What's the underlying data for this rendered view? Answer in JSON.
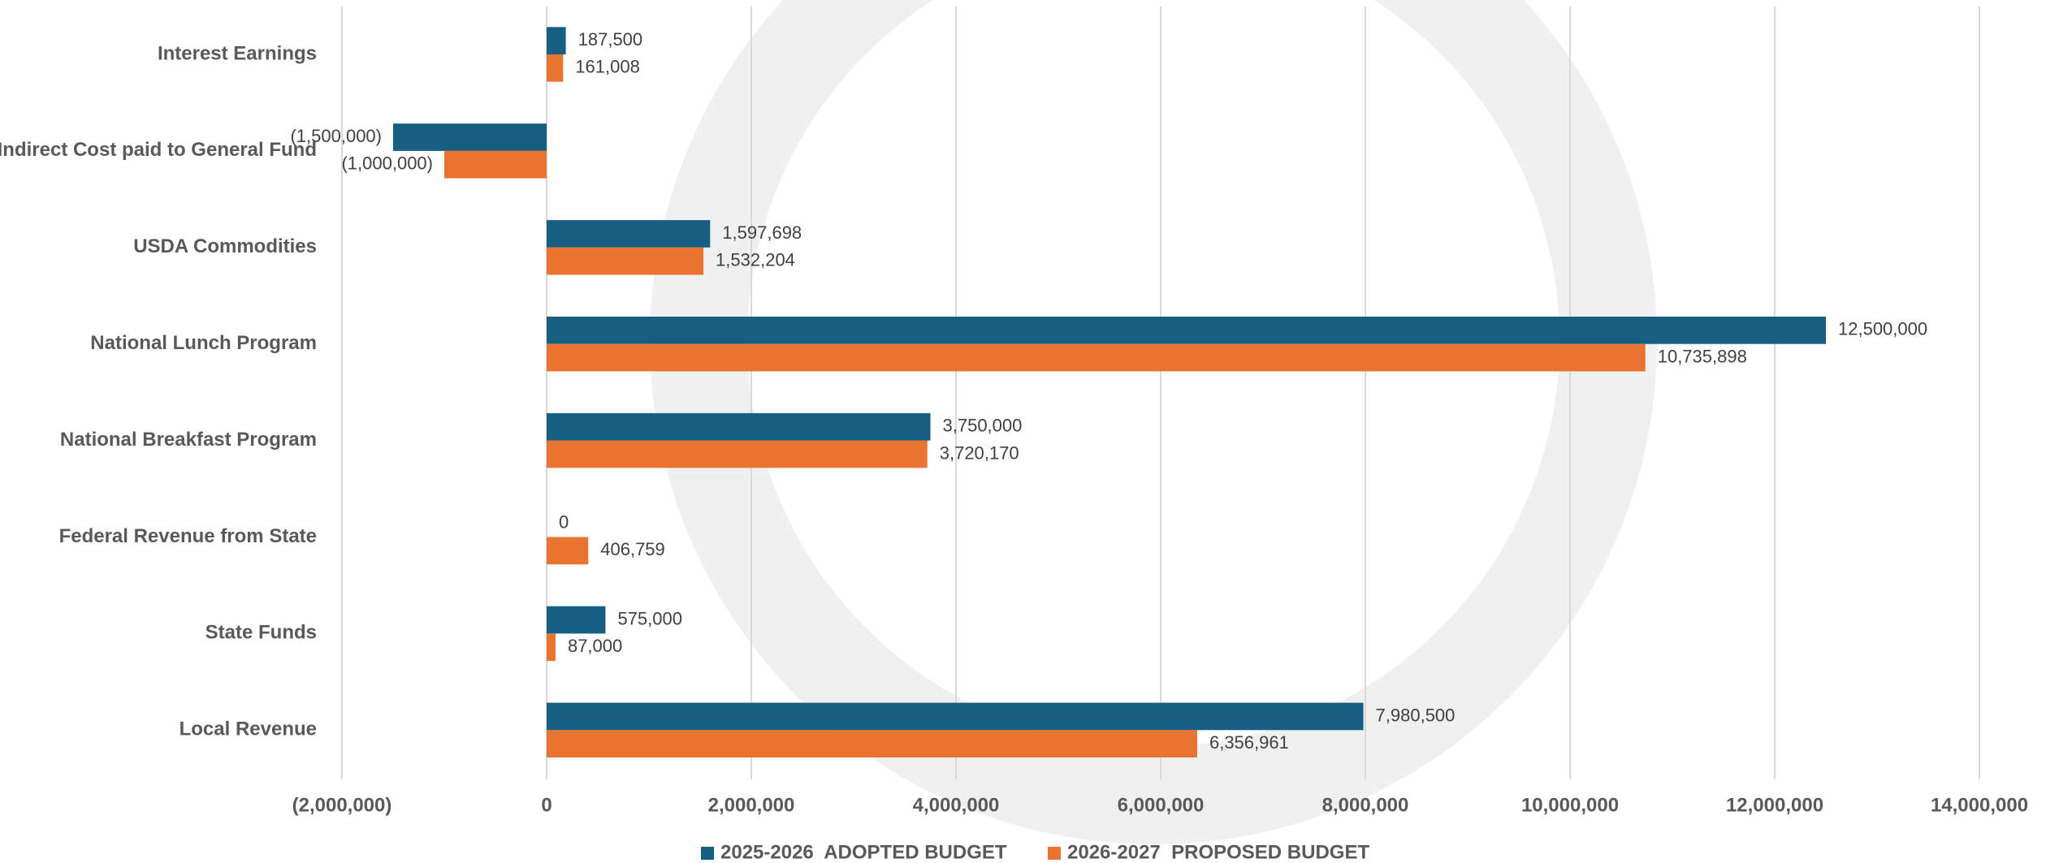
{
  "chart_data": {
    "type": "barh",
    "categories": [
      "Interest Earnings",
      "Indirect Cost paid to General Fund",
      "USDA Commodities",
      "National Lunch Program",
      "National Breakfast Program",
      "Federal Revenue from State",
      "State Funds",
      "Local Revenue"
    ],
    "series": [
      {
        "name": "2025-2026  ADOPTED BUDGET",
        "color": "#175e83",
        "values": [
          187500,
          -1500000,
          1597698,
          12500000,
          3750000,
          0,
          575000,
          7980500
        ],
        "value_labels": [
          "187,500",
          "(1,500,000)",
          "1,597,698",
          "12,500,000",
          "3,750,000",
          "0",
          "575,000",
          "7,980,500"
        ]
      },
      {
        "name": "2026-2027  PROPOSED BUDGET",
        "color": "#e9742f",
        "values": [
          161008,
          -1000000,
          1532204,
          10735898,
          3720170,
          406759,
          87000,
          6356961
        ],
        "value_labels": [
          "161,008",
          "(1,000,000)",
          "1,532,204",
          "10,735,898",
          "3,720,170",
          "406,759",
          "87,000",
          "6,356,961"
        ]
      }
    ],
    "xlim": [
      -2000000,
      14000000
    ],
    "xticks": [
      {
        "value": -2000000,
        "label": "(2,000,000)"
      },
      0,
      {
        "value": 2000000,
        "label": "2,000,000"
      },
      {
        "value": 4000000,
        "label": "4,000,000"
      },
      {
        "value": 6000000,
        "label": "6,000,000"
      },
      {
        "value": 8000000,
        "label": "8,000,000"
      },
      {
        "value": 10000000,
        "label": "10,000,000"
      },
      {
        "value": 12000000,
        "label": "12,000,000"
      },
      {
        "value": 14000000,
        "label": "14,000,000"
      }
    ],
    "grid": true,
    "negative_label_color": "#ff0000",
    "legend": "bottom"
  }
}
